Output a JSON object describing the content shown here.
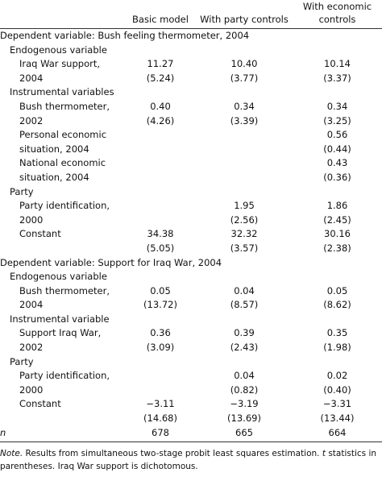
{
  "table": {
    "headers": [
      "Basic model",
      "With party controls",
      "With economic controls"
    ],
    "sections": [
      {
        "title": "Dependent variable: Bush feeling thermometer, 2004",
        "groups": [
          {
            "title": "Endogenous variable",
            "rows": [
              {
                "label": "Iraq War support, 2004",
                "values": [
                  "11.27",
                  "10.40",
                  "10.14"
                ],
                "stats": [
                  "(5.24)",
                  "(3.77)",
                  "(3.37)"
                ]
              }
            ]
          },
          {
            "title": "Instrumental variables",
            "rows": [
              {
                "label": "Bush thermometer, 2002",
                "values": [
                  "0.40",
                  "0.34",
                  "0.34"
                ],
                "stats": [
                  "(4.26)",
                  "(3.39)",
                  "(3.25)"
                ]
              },
              {
                "label": "Personal economic situation, 2004",
                "values": [
                  null,
                  null,
                  "0.56"
                ],
                "stats": [
                  null,
                  null,
                  "(0.44)"
                ]
              },
              {
                "label": "National economic situation, 2004",
                "values": [
                  null,
                  null,
                  "0.43"
                ],
                "stats": [
                  null,
                  null,
                  "(0.36)"
                ]
              }
            ]
          },
          {
            "title": "Party",
            "rows": [
              {
                "label": "Party identification, 2000",
                "values": [
                  null,
                  "1.95",
                  "1.86"
                ],
                "stats": [
                  null,
                  "(2.56)",
                  "(2.45)"
                ]
              },
              {
                "label": "Constant",
                "values": [
                  "34.38",
                  "32.32",
                  "30.16"
                ],
                "stats": [
                  "(5.05)",
                  "(3.57)",
                  "(2.38)"
                ]
              }
            ]
          }
        ]
      },
      {
        "title": "Dependent variable: Support for Iraq War, 2004",
        "groups": [
          {
            "title": "Endogenous variable",
            "rows": [
              {
                "label": "Bush thermometer, 2004",
                "values": [
                  "0.05",
                  "0.04",
                  "0.05"
                ],
                "stats": [
                  "(13.72)",
                  "(8.57)",
                  "(8.62)"
                ]
              }
            ]
          },
          {
            "title": "Instrumental variable",
            "rows": [
              {
                "label": "Support Iraq War, 2002",
                "values": [
                  "0.36",
                  "0.39",
                  "0.35"
                ],
                "stats": [
                  "(3.09)",
                  "(2.43)",
                  "(1.98)"
                ]
              }
            ]
          },
          {
            "title": "Party",
            "rows": [
              {
                "label": "Party identification, 2000",
                "values": [
                  null,
                  "0.04",
                  "0.02"
                ],
                "stats": [
                  null,
                  "(0.82)",
                  "(0.40)"
                ]
              },
              {
                "label": "Constant",
                "values": [
                  "−3.11",
                  "−3.19",
                  "−3.31"
                ],
                "stats": [
                  "(14.68)",
                  "(13.69)",
                  "(13.44)"
                ]
              }
            ]
          }
        ]
      }
    ],
    "n_row": {
      "label": "n",
      "values": [
        678,
        665,
        664
      ]
    },
    "note": {
      "label": "Note.",
      "text1": "Results from simultaneous two-stage probit least squares estimation.",
      "t": "t",
      "text2": "statistics in parentheses. Iraq War support is dichotomous."
    }
  }
}
